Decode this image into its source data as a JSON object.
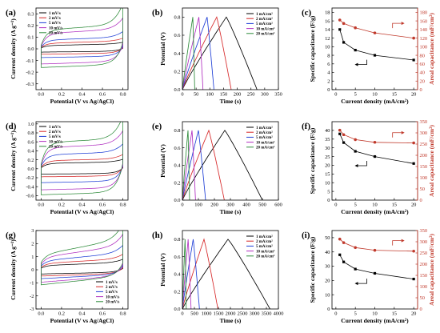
{
  "chart_data": [
    {
      "panel": "(a)",
      "type": "line",
      "xlabel": "Potential (V vs Ag/AgCl)",
      "ylabel": "Current density (A g⁻¹)",
      "xlim": [
        -0.05,
        0.85
      ],
      "ylim": [
        -0.35,
        0.35
      ],
      "xticks": [
        0.0,
        0.2,
        0.4,
        0.6,
        0.8
      ],
      "xtick_labels": [
        "0.0",
        "0.2",
        "0.4",
        "0.6",
        "0.8"
      ],
      "yticks": [
        -0.3,
        -0.2,
        -0.1,
        0.0,
        0.1,
        0.2,
        0.3
      ],
      "ytick_labels": [
        "-0.3",
        "-0.2",
        "-0.1",
        "0.0",
        "0.1",
        "0.2",
        "0.3"
      ],
      "legend_position": "top-left",
      "series": [
        {
          "name": "1  mV/s",
          "color": "#000000",
          "cv": {
            "a": 0.008,
            "b": 0.014,
            "t": 0.02,
            "s": 0.018
          }
        },
        {
          "name": "2  mV/s",
          "color": "#d62728",
          "cv": {
            "a": 0.012,
            "b": 0.024,
            "t": 0.035,
            "s": 0.025
          }
        },
        {
          "name": "5  mV/s",
          "color": "#1f3fd6",
          "cv": {
            "a": 0.015,
            "b": 0.05,
            "t": 0.06,
            "s": 0.03
          }
        },
        {
          "name": "10  mV/s",
          "color": "#b030c0",
          "cv": {
            "a": 0.02,
            "b": 0.095,
            "t": 0.11,
            "s": 0.05
          }
        },
        {
          "name": "20  mV/s",
          "color": "#2e8b3a",
          "cv": {
            "a": 0.03,
            "b": 0.18,
            "t": 0.13,
            "s": 0.06
          }
        }
      ]
    },
    {
      "panel": "(b)",
      "type": "line",
      "xlabel": "Time (s)",
      "ylabel": "Potential (V)",
      "xlim": [
        0,
        350
      ],
      "ylim": [
        0,
        0.9
      ],
      "xticks": [
        0,
        50,
        100,
        150,
        200,
        250,
        300,
        350
      ],
      "xtick_labels": [
        "0",
        "50",
        "100",
        "150",
        "200",
        "250",
        "300",
        "350"
      ],
      "yticks": [
        0.0,
        0.2,
        0.4,
        0.6,
        0.8
      ],
      "ytick_labels": [
        "0.0",
        "0.2",
        "0.4",
        "0.6",
        "0.8"
      ],
      "legend_position": "top-right",
      "series": [
        {
          "name": "1  mA/cm²",
          "color": "#000000",
          "gcd": {
            "peak": 160,
            "end": 272
          }
        },
        {
          "name": "2  mA/cm²",
          "color": "#d62728",
          "gcd": {
            "peak": 125,
            "end": 178
          }
        },
        {
          "name": "5  mA/cm²",
          "color": "#1f3fd6",
          "gcd": {
            "peak": 90,
            "end": 115
          }
        },
        {
          "name": "10  mA/cm²",
          "color": "#b030c0",
          "gcd": {
            "peak": 60,
            "end": 75
          }
        },
        {
          "name": "20  mA/cm²",
          "color": "#2e8b3a",
          "gcd": {
            "peak": 38,
            "end": 45
          }
        }
      ]
    },
    {
      "panel": "(c)",
      "type": "line",
      "xlabel": "Current density (mA/cm²)",
      "ylabel": "Specific capacitance (F/g)",
      "y2label": "Areal capacitance (mF/cm²)",
      "xlim": [
        -1,
        21
      ],
      "ylim": [
        0,
        19
      ],
      "y2lim": [
        0,
        190
      ],
      "xticks": [
        0,
        5,
        10,
        15,
        20
      ],
      "xtick_labels": [
        "0",
        "5",
        "10",
        "15",
        "20"
      ],
      "yticks": [
        0,
        2,
        4,
        6,
        8,
        10,
        12,
        14,
        16,
        18
      ],
      "ytick_labels": [
        "0",
        "2",
        "4",
        "6",
        "8",
        "10",
        "12",
        "14",
        "16",
        "18"
      ],
      "y2ticks": [
        0,
        20,
        40,
        60,
        80,
        100,
        120,
        140,
        160,
        180
      ],
      "y2tick_labels": [
        "0",
        "20",
        "40",
        "60",
        "80",
        "100",
        "120",
        "140",
        "160",
        "180"
      ],
      "x": [
        1,
        2,
        5,
        10,
        20
      ],
      "series": [
        {
          "color": "#000000",
          "axis": "left",
          "values": [
            14.0,
            11.0,
            9.2,
            8.0,
            6.9
          ]
        },
        {
          "color": "#c0392b",
          "axis": "right",
          "values": [
            162,
            154,
            144,
            132,
            120
          ]
        }
      ]
    },
    {
      "panel": "(d)",
      "type": "line",
      "xlabel": "Potential (V vs Ag/AgCl)",
      "ylabel": "Current density (A g⁻¹)",
      "xlim": [
        -0.05,
        0.85
      ],
      "ylim": [
        -0.7,
        1.05
      ],
      "xticks": [
        0.0,
        0.2,
        0.4,
        0.6,
        0.8
      ],
      "xtick_labels": [
        "0.0",
        "0.2",
        "0.4",
        "0.6",
        "0.8"
      ],
      "yticks": [
        -0.6,
        -0.4,
        -0.2,
        0.0,
        0.2,
        0.4,
        0.6,
        0.8,
        1.0
      ],
      "ytick_labels": [
        "-0.6",
        "-0.4",
        "-0.2",
        "0.0",
        "0.2",
        "0.4",
        "0.6",
        "0.8",
        "1.0"
      ],
      "legend_position": "top-left",
      "series": [
        {
          "name": "1  mV/s",
          "color": "#000000",
          "cv": {
            "a": 0.02,
            "b": 0.06,
            "t": 0.1,
            "s": 0.04
          }
        },
        {
          "name": "2  mV/s",
          "color": "#d62728",
          "cv": {
            "a": 0.03,
            "b": 0.1,
            "t": 0.15,
            "s": 0.05
          }
        },
        {
          "name": "5  mV/s",
          "color": "#1f3fd6",
          "cv": {
            "a": 0.05,
            "b": 0.18,
            "t": 0.26,
            "s": 0.08
          }
        },
        {
          "name": "10  mV/s",
          "color": "#b030c0",
          "cv": {
            "a": 0.07,
            "b": 0.3,
            "t": 0.4,
            "s": 0.1
          }
        },
        {
          "name": "20  mV/s",
          "color": "#2e8b3a",
          "cv": {
            "a": 0.1,
            "b": 0.5,
            "t": 0.48,
            "s": 0.12
          }
        }
      ]
    },
    {
      "panel": "(e)",
      "type": "line",
      "xlabel": "Time (s)",
      "ylabel": "Potential (V)",
      "xlim": [
        0,
        600
      ],
      "ylim": [
        0,
        0.9
      ],
      "xticks": [
        0,
        100,
        200,
        300,
        400,
        500,
        600
      ],
      "xtick_labels": [
        "0",
        "100",
        "200",
        "300",
        "400",
        "500",
        "600"
      ],
      "yticks": [
        0.0,
        0.2,
        0.4,
        0.6,
        0.8
      ],
      "ytick_labels": [
        "0.0",
        "0.2",
        "0.4",
        "0.6",
        "0.8"
      ],
      "legend_position": "top-right",
      "series": [
        {
          "name": "1  mA/cm²",
          "color": "#000000",
          "gcd": {
            "peak": 265,
            "end": 500
          }
        },
        {
          "name": "2  mA/cm²",
          "color": "#d62728",
          "gcd": {
            "peak": 165,
            "end": 262
          }
        },
        {
          "name": "5  mA/cm²",
          "color": "#1f3fd6",
          "gcd": {
            "peak": 100,
            "end": 145
          }
        },
        {
          "name": "10  mA/cm²",
          "color": "#b030c0",
          "gcd": {
            "peak": 60,
            "end": 82
          }
        },
        {
          "name": "20  mA/cm²",
          "color": "#2e8b3a",
          "gcd": {
            "peak": 35,
            "end": 45
          }
        }
      ]
    },
    {
      "panel": "(f)",
      "type": "line",
      "xlabel": "Current density (mA/cm²)",
      "ylabel": "Specific capacitance (F/g)",
      "y2label": "Areal capacitance (mF/cm²)",
      "xlim": [
        -1,
        21
      ],
      "ylim": [
        0,
        45
      ],
      "y2lim": [
        0,
        350
      ],
      "xticks": [
        0,
        5,
        10,
        15,
        20
      ],
      "xtick_labels": [
        "0",
        "5",
        "10",
        "15",
        "20"
      ],
      "yticks": [
        0,
        5,
        10,
        15,
        20,
        25,
        30,
        35,
        40
      ],
      "ytick_labels": [
        "0",
        "5",
        "10",
        "15",
        "20",
        "25",
        "30",
        "35",
        "40"
      ],
      "y2ticks": [
        0,
        50,
        100,
        150,
        200,
        250,
        300,
        350
      ],
      "y2tick_labels": [
        "0",
        "50",
        "100",
        "150",
        "200",
        "250",
        "300",
        "350"
      ],
      "x": [
        1,
        2,
        5,
        10,
        20
      ],
      "series": [
        {
          "color": "#000000",
          "axis": "left",
          "values": [
            38,
            33,
            28,
            25,
            21
          ]
        },
        {
          "color": "#c0392b",
          "axis": "right",
          "values": [
            312,
            292,
            270,
            258,
            255
          ]
        }
      ]
    },
    {
      "panel": "(g)",
      "type": "line",
      "xlabel": "Potential (V vs Ag/AgCl)",
      "ylabel": "Current density (A g⁻¹)",
      "xlim": [
        -0.05,
        0.85
      ],
      "ylim": [
        -3.0,
        3.0
      ],
      "xticks": [
        0.0,
        0.2,
        0.4,
        0.6,
        0.8
      ],
      "xtick_labels": [
        "0.0",
        "0.2",
        "0.4",
        "0.6",
        "0.8"
      ],
      "yticks": [
        -3,
        -2,
        -1,
        0,
        1,
        2,
        3
      ],
      "ytick_labels": [
        "-3",
        "-2",
        "-1",
        "0",
        "1",
        "2",
        "3"
      ],
      "legend_position": "bottom-right",
      "series": [
        {
          "name": "1  mV/s",
          "color": "#000000",
          "cv": {
            "a": 0.12,
            "b": 0.25,
            "t": 0.2,
            "s": 0.3
          }
        },
        {
          "name": "2  mV/s",
          "color": "#d62728",
          "cv": {
            "a": 0.18,
            "b": 0.35,
            "t": 0.3,
            "s": 0.45
          }
        },
        {
          "name": "5  mV/s",
          "color": "#1f3fd6",
          "cv": {
            "a": 0.28,
            "b": 0.6,
            "t": 0.4,
            "s": 0.75
          }
        },
        {
          "name": "10  mV/s",
          "color": "#b030c0",
          "cv": {
            "a": 0.4,
            "b": 0.9,
            "t": 0.55,
            "s": 1.1
          }
        },
        {
          "name": "20  mV/s",
          "color": "#2e8b3a",
          "cv": {
            "a": 0.55,
            "b": 1.2,
            "t": 0.6,
            "s": 1.5
          }
        }
      ]
    },
    {
      "panel": "(h)",
      "type": "line",
      "xlabel": "Time (s)",
      "ylabel": "Potential (V)",
      "xlim": [
        0,
        4000
      ],
      "ylim": [
        0,
        0.9
      ],
      "xticks": [
        0,
        500,
        1000,
        1500,
        2000,
        2500,
        3000,
        3500,
        4000
      ],
      "xtick_labels": [
        "0",
        "500",
        "1000",
        "1500",
        "2000",
        "2500",
        "3000",
        "3500",
        "4000"
      ],
      "yticks": [
        0.0,
        0.2,
        0.4,
        0.6,
        0.8
      ],
      "ytick_labels": [
        "0.0",
        "0.2",
        "0.4",
        "0.6",
        "0.8"
      ],
      "legend_position": "top-right",
      "series": [
        {
          "name": "1  mA/cm²",
          "color": "#000000",
          "gcd": {
            "peak": 1900,
            "end": 3650
          }
        },
        {
          "name": "2  mA/cm²",
          "color": "#d62728",
          "gcd": {
            "peak": 900,
            "end": 1480
          }
        },
        {
          "name": "5  mA/cm²",
          "color": "#1f3fd6",
          "gcd": {
            "peak": 450,
            "end": 710
          }
        },
        {
          "name": "10  mA/cm²",
          "color": "#b030c0",
          "gcd": {
            "peak": 240,
            "end": 360
          }
        },
        {
          "name": "20  mA/cm²",
          "color": "#2e8b3a",
          "gcd": {
            "peak": 110,
            "end": 160
          }
        }
      ]
    },
    {
      "panel": "(i)",
      "type": "line",
      "xlabel": "Current density (mA/cm²)",
      "ylabel": "Specific capacitance (F/g)",
      "y2label": "Areal capacitance (mF/cm²)",
      "xlim": [
        -1,
        21
      ],
      "ylim": [
        0,
        55
      ],
      "y2lim": [
        0,
        350
      ],
      "xticks": [
        0,
        5,
        10,
        15,
        20
      ],
      "xtick_labels": [
        "0",
        "5",
        "10",
        "15",
        "20"
      ],
      "yticks": [
        0,
        10,
        20,
        30,
        40,
        50
      ],
      "ytick_labels": [
        "0",
        "10",
        "20",
        "30",
        "40",
        "50"
      ],
      "y2ticks": [
        0,
        50,
        100,
        150,
        200,
        250,
        300,
        350
      ],
      "y2tick_labels": [
        "0",
        "50",
        "100",
        "150",
        "200",
        "250",
        "300",
        "350"
      ],
      "x": [
        1,
        2,
        5,
        10,
        20
      ],
      "series": [
        {
          "color": "#000000",
          "axis": "left",
          "values": [
            38,
            33,
            28,
            25,
            21
          ]
        },
        {
          "color": "#c0392b",
          "axis": "right",
          "values": [
            312,
            296,
            274,
            262,
            258
          ]
        }
      ]
    }
  ]
}
